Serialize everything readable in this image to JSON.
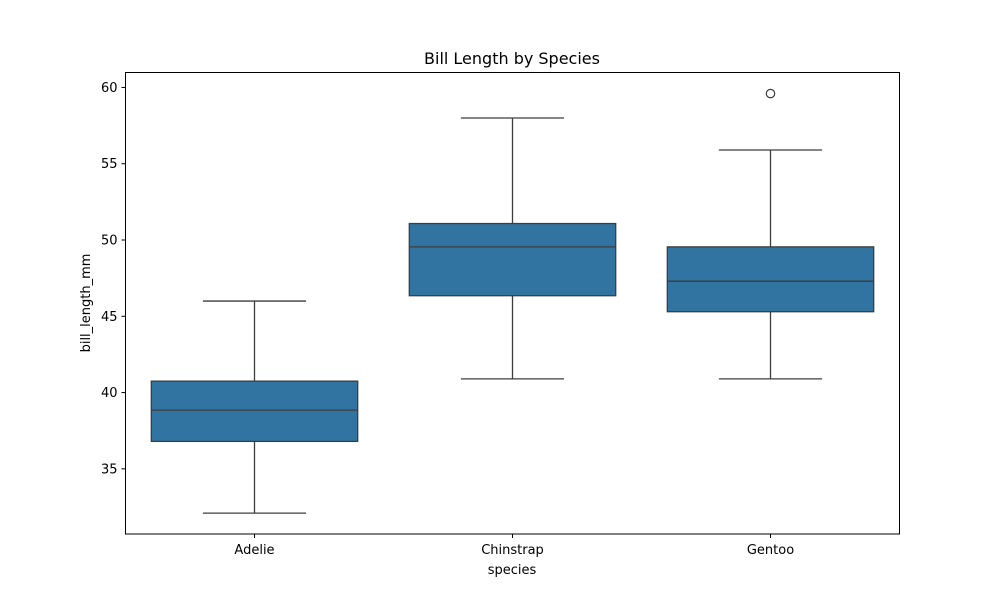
{
  "chart_data": {
    "type": "box",
    "title": "Bill Length by Species",
    "xlabel": "species",
    "ylabel": "bill_length_mm",
    "ylim": [
      30.73,
      60.98
    ],
    "yticks": [
      35,
      40,
      45,
      50,
      55,
      60
    ],
    "categories": [
      "Adelie",
      "Chinstrap",
      "Gentoo"
    ],
    "grid": false,
    "box_color": "#3274a1",
    "line_color": "#3d3d3d",
    "boxes": [
      {
        "name": "Adelie",
        "whisker_low": 32.1,
        "q1": 36.8,
        "median": 38.85,
        "q3": 40.75,
        "whisker_high": 46.0,
        "outliers": []
      },
      {
        "name": "Chinstrap",
        "whisker_low": 40.9,
        "q1": 46.35,
        "median": 49.55,
        "q3": 51.08,
        "whisker_high": 58.0,
        "outliers": []
      },
      {
        "name": "Gentoo",
        "whisker_low": 40.9,
        "q1": 45.3,
        "median": 47.3,
        "q3": 49.55,
        "whisker_high": 55.9,
        "outliers": [
          59.6
        ]
      }
    ]
  }
}
